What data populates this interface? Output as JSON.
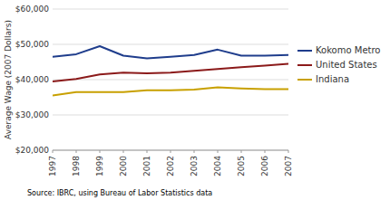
{
  "chart_data": {
    "type": "line",
    "ylabel": "Average Wage (2007 Dollars)",
    "source": "Source: IBRC, using Bureau of Labor Statistics data",
    "x": [
      1997,
      1998,
      1999,
      2000,
      2001,
      2002,
      2003,
      2004,
      2005,
      2006,
      2007
    ],
    "series": [
      {
        "name": "Kokomo Metro",
        "color": "#1f3d8c",
        "values": [
          46500,
          47200,
          49500,
          46800,
          46000,
          46500,
          47000,
          48500,
          46800,
          46800,
          47000
        ]
      },
      {
        "name": "United States",
        "color": "#8b1a1a",
        "values": [
          39500,
          40200,
          41500,
          42000,
          41800,
          42000,
          42500,
          43000,
          43500,
          44000,
          44500
        ]
      },
      {
        "name": "Indiana",
        "color": "#c8a000",
        "values": [
          35500,
          36500,
          36500,
          36500,
          37000,
          37000,
          37200,
          37800,
          37500,
          37300,
          37300
        ]
      }
    ],
    "xlim": [
      1997,
      2007
    ],
    "xticks": [
      1997,
      1998,
      1999,
      2000,
      2001,
      2002,
      2003,
      2004,
      2005,
      2006,
      2007
    ],
    "ylim": [
      20000,
      60000
    ],
    "yticks": [
      {
        "value": 20000,
        "label": "$20,000"
      },
      {
        "value": 30000,
        "label": "$30,000"
      },
      {
        "value": 40000,
        "label": "$40,000"
      },
      {
        "value": 50000,
        "label": "$50,000"
      },
      {
        "value": 60000,
        "label": "$60,000"
      }
    ],
    "grid": true,
    "legend": "right"
  }
}
